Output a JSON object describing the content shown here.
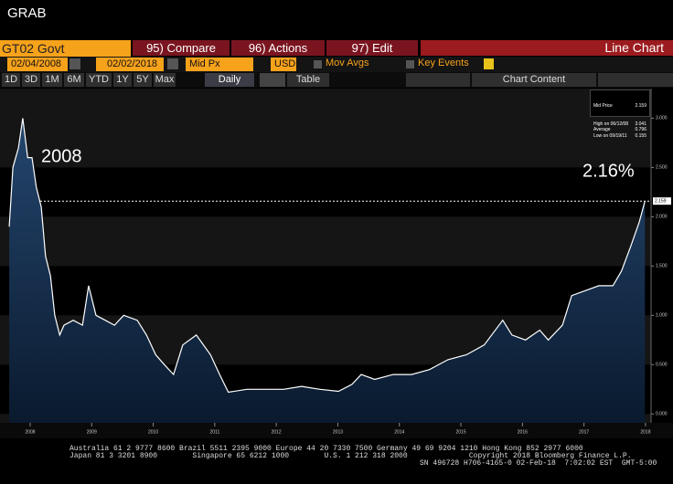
{
  "header": {
    "title": "GRAB"
  },
  "toolbar": {
    "security": "GT02 Govt",
    "menus": [
      "95) Compare",
      "96) Actions",
      "97) Edit"
    ],
    "view": "Line Chart"
  },
  "controls": {
    "start_date": "02/04/2008",
    "end_date": "02/02/2018",
    "field": "Mid Px",
    "currency": "USD",
    "options": [
      "Mov Avgs",
      "Key Events"
    ]
  },
  "periods": {
    "buttons": [
      "1D",
      "3D",
      "1M",
      "6M",
      "YTD",
      "1Y",
      "5Y",
      "Max"
    ],
    "frequency": "Daily",
    "table": "Table",
    "chart_content": "Chart Content"
  },
  "legend": {
    "last_value": "2.159",
    "rows": [
      {
        "label": "High on 06/12/08",
        "value": "3.041"
      },
      {
        "label": "Average",
        "value": "0.796"
      },
      {
        "label": "Low on 09/19/11",
        "value": "0.155"
      }
    ]
  },
  "chart_data": {
    "type": "line",
    "x": [
      2007.66,
      2007.72,
      2007.81,
      2007.88,
      2007.96,
      2008.03,
      2008.1,
      2008.18,
      2008.25,
      2008.33,
      2008.4,
      2008.48,
      2008.55,
      2008.7,
      2008.85,
      2008.95,
      2009.07,
      2009.22,
      2009.37,
      2009.52,
      2009.74,
      2009.89,
      2010.04,
      2010.18,
      2010.33,
      2010.48,
      2010.7,
      2010.93,
      2011.08,
      2011.22,
      2011.52,
      2011.82,
      2012.12,
      2012.41,
      2012.71,
      2013.01,
      2013.23,
      2013.38,
      2013.6,
      2013.9,
      2014.2,
      2014.49,
      2014.79,
      2015.09,
      2015.38,
      2015.68,
      2015.83,
      2016.05,
      2016.28,
      2016.42,
      2016.65,
      2016.8,
      2017.02,
      2017.24,
      2017.47,
      2017.61,
      2017.76,
      2017.9,
      2017.99
    ],
    "series": [
      {
        "name": "Mid Price",
        "color": "#ffffff",
        "values": [
          1.9,
          2.5,
          2.7,
          3.0,
          2.6,
          2.6,
          2.3,
          2.1,
          1.6,
          1.4,
          1.0,
          0.8,
          0.9,
          0.95,
          0.9,
          1.3,
          1.0,
          0.95,
          0.9,
          1.0,
          0.95,
          0.8,
          0.6,
          0.5,
          0.4,
          0.7,
          0.8,
          0.6,
          0.4,
          0.22,
          0.25,
          0.25,
          0.25,
          0.28,
          0.25,
          0.23,
          0.3,
          0.4,
          0.35,
          0.4,
          0.4,
          0.45,
          0.55,
          0.6,
          0.7,
          0.95,
          0.8,
          0.75,
          0.85,
          0.75,
          0.9,
          1.2,
          1.25,
          1.3,
          1.3,
          1.45,
          1.7,
          1.95,
          2.16
        ]
      }
    ],
    "xlim": [
      2007.51,
      2018.09
    ],
    "xticks": [
      2008,
      2009,
      2010,
      2011,
      2012,
      2013,
      2014,
      2015,
      2016,
      2017,
      2018
    ],
    "ylim": [
      -0.09,
      3.3
    ],
    "yticks": [
      {
        "value": 0,
        "label": "0.000"
      },
      {
        "value": 0.5,
        "label": "0.500"
      },
      {
        "value": 1,
        "label": "1.000"
      },
      {
        "value": 1.5,
        "label": "1.500"
      },
      {
        "value": 2,
        "label": "2.000"
      },
      {
        "value": 2.5,
        "label": "2.500"
      },
      {
        "value": 3,
        "label": "3.000"
      }
    ],
    "hline": 2.159,
    "annotations": [
      "2008",
      "2.16%"
    ]
  },
  "footer": {
    "lines": [
      "Australia 61 2 9777 8600 Brazil 5511 2395 9000 Europe 44 20 7330 7500 Germany 49 69 9204 1210 Hong Kong 852 2977 6000",
      "Japan 81 3 3201 8900        Singapore 65 6212 1000        U.S. 1 212 318 2000              Copyright 2018 Bloomberg Finance L.P.",
      "SN 496728 H706-4165-0 02-Feb-18  7:02:02 EST  GMT-5:00"
    ]
  }
}
